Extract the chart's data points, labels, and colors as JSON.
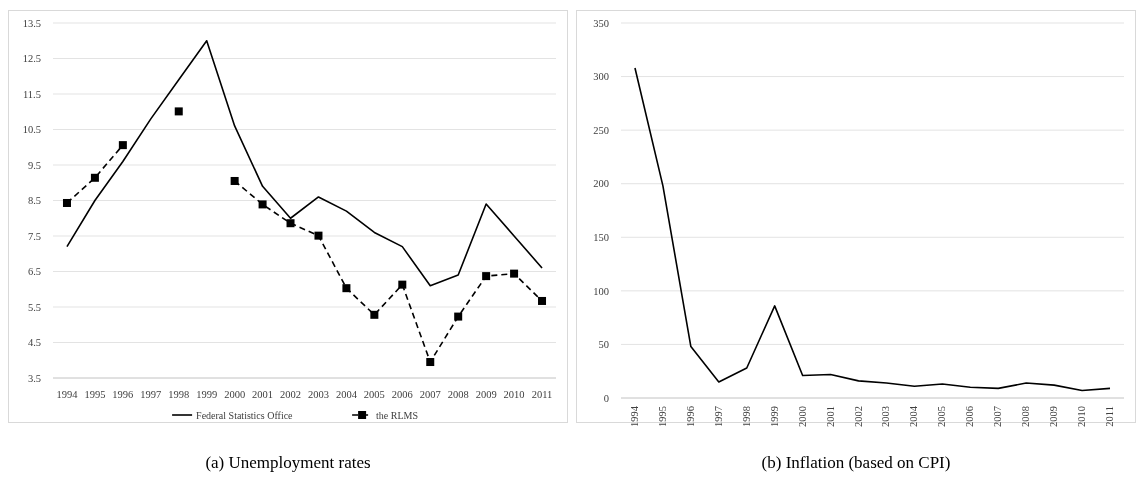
{
  "chart_data": [
    {
      "type": "line",
      "title": "(a) Unemployment rates",
      "categories": [
        "1994",
        "1995",
        "1996",
        "1997",
        "1998",
        "1999",
        "2000",
        "2001",
        "2002",
        "2003",
        "2004",
        "2005",
        "2006",
        "2007",
        "2008",
        "2009",
        "2010",
        "2011"
      ],
      "series": [
        {
          "name": "Federal Statistics Office",
          "color": "#000000",
          "marker": "none",
          "line_style": "solid",
          "values": [
            7.2,
            8.5,
            9.6,
            10.8,
            11.9,
            13.0,
            10.6,
            8.9,
            8.0,
            8.6,
            8.2,
            7.6,
            7.2,
            6.1,
            6.4,
            8.4,
            7.5,
            6.6
          ]
        },
        {
          "name": "the RLMS",
          "color": "#000000",
          "marker": "square",
          "line_style": "dashed",
          "values": [
            8.43,
            9.14,
            10.06,
            null,
            11.01,
            null,
            9.05,
            8.39,
            7.86,
            7.51,
            6.03,
            5.28,
            6.13,
            3.95,
            5.23,
            6.37,
            6.44,
            5.67
          ]
        }
      ],
      "ylim": [
        3.5,
        13.5
      ],
      "yticks": [
        3.5,
        4.5,
        5.5,
        6.5,
        7.5,
        8.5,
        9.5,
        10.5,
        11.5,
        12.5,
        13.5
      ],
      "grid": "y",
      "legend": "bottom"
    },
    {
      "type": "line",
      "title": "(b) Inflation (based on CPI)",
      "categories": [
        "1994",
        "1995",
        "1996",
        "1997",
        "1998",
        "1999",
        "2000",
        "2001",
        "2002",
        "2003",
        "2004",
        "2005",
        "2006",
        "2007",
        "2008",
        "2009",
        "2010",
        "2011"
      ],
      "series": [
        {
          "color": "#000000",
          "marker": "none",
          "line_style": "solid",
          "values": [
            308,
            198,
            48,
            15,
            28,
            86,
            21,
            22,
            16,
            14,
            11,
            13,
            10,
            9,
            14,
            12,
            7,
            9
          ]
        }
      ],
      "ylim": [
        0,
        350
      ],
      "yticks": [
        0,
        50,
        100,
        150,
        200,
        250,
        300,
        350
      ],
      "grid": "y",
      "legend": false
    }
  ]
}
